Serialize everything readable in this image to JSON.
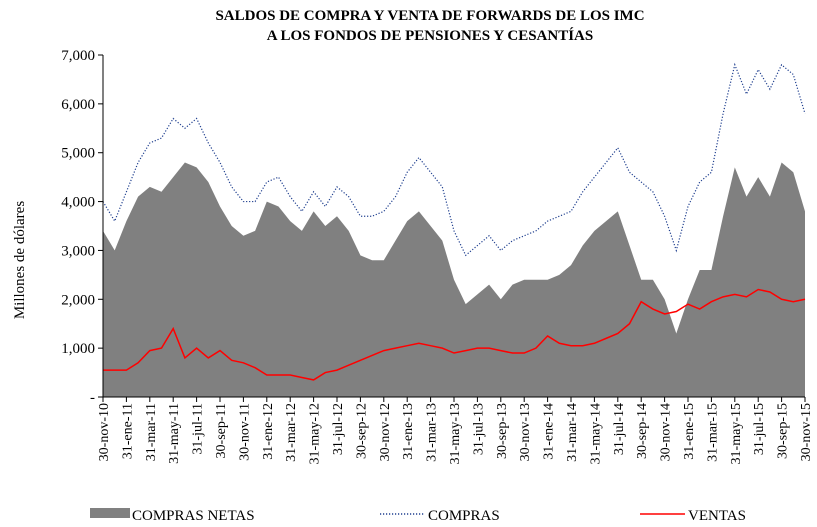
{
  "chart_data": {
    "type": "area-line",
    "title": [
      "SALDOS DE COMPRA Y VENTA DE FORWARDS DE LOS IMC",
      "A LOS FONDOS DE PENSIONES Y CESANTÍAS"
    ],
    "y_label": "Millones de dólares",
    "categories": [
      "30-nov-10",
      null,
      "31-ene-11",
      null,
      "31-mar-11",
      null,
      "31-may-11",
      null,
      "31-jul-11",
      null,
      "30-sep-11",
      null,
      "30-nov-11",
      null,
      "31-ene-12",
      null,
      "31-mar-12",
      null,
      "31-may-12",
      null,
      "31-jul-12",
      null,
      "30-sep-12",
      null,
      "30-nov-12",
      null,
      "31-ene-13",
      null,
      "31-mar-13",
      null,
      "31-may-13",
      null,
      "31-jul-13",
      null,
      "30-sep-13",
      null,
      "30-nov-13",
      null,
      "31-ene-14",
      null,
      "31-mar-14",
      null,
      "31-may-14",
      null,
      "31-jul-14",
      null,
      "30-sep-14",
      null,
      "30-nov-14",
      null,
      "31-ene-15",
      null,
      "31-mar-15",
      null,
      "31-may-15",
      null,
      "31-jul-15",
      null,
      "30-sep-15",
      null,
      "30-nov-15"
    ],
    "series": [
      {
        "name": "COMPRAS NETAS",
        "color": "#808080",
        "style": "area",
        "values": [
          3400,
          3000,
          3600,
          4100,
          4300,
          4200,
          4500,
          4800,
          4700,
          4400,
          3900,
          3500,
          3300,
          3400,
          4000,
          3900,
          3600,
          3400,
          3800,
          3500,
          3700,
          3400,
          2900,
          2800,
          2800,
          3200,
          3600,
          3800,
          3500,
          3200,
          2400,
          1900,
          2100,
          2300,
          2000,
          2300,
          2400,
          2400,
          2400,
          2500,
          2700,
          3100,
          3400,
          3600,
          3800,
          3100,
          2400,
          2400,
          2000,
          1300,
          2000,
          2600,
          2600,
          3700,
          4700,
          4100,
          4500,
          4100,
          4800,
          4600,
          3800
        ]
      },
      {
        "name": "COMPRAS",
        "color": "#1f3f8f",
        "style": "dotted",
        "values": [
          4000,
          3600,
          4200,
          4800,
          5200,
          5300,
          5700,
          5500,
          5700,
          5200,
          4800,
          4300,
          4000,
          4000,
          4400,
          4500,
          4100,
          3800,
          4200,
          3900,
          4300,
          4100,
          3700,
          3700,
          3800,
          4100,
          4600,
          4900,
          4600,
          4300,
          3400,
          2900,
          3100,
          3300,
          3000,
          3200,
          3300,
          3400,
          3600,
          3700,
          3800,
          4200,
          4500,
          4800,
          5100,
          4600,
          4400,
          4200,
          3700,
          3000,
          3900,
          4400,
          4600,
          5800,
          6800,
          6200,
          6700,
          6300,
          6800,
          6600,
          5800
        ]
      },
      {
        "name": "VENTAS",
        "color": "#ff0000",
        "style": "solid",
        "values": [
          550,
          550,
          550,
          700,
          950,
          1000,
          1400,
          800,
          1000,
          800,
          950,
          750,
          700,
          600,
          450,
          450,
          450,
          400,
          350,
          500,
          550,
          650,
          750,
          850,
          950,
          1000,
          1050,
          1100,
          1050,
          1000,
          900,
          950,
          1000,
          1000,
          950,
          900,
          900,
          1000,
          1250,
          1100,
          1050,
          1050,
          1100,
          1200,
          1300,
          1500,
          1950,
          1800,
          1700,
          1750,
          1900,
          1800,
          1950,
          2050,
          2100,
          2050,
          2200,
          2150,
          2000,
          1950,
          2000
        ]
      }
    ],
    "ylim": [
      0,
      7000
    ],
    "yticks": [
      {
        "value": 0,
        "label": "-"
      },
      {
        "value": 1000,
        "label": "1,000"
      },
      {
        "value": 2000,
        "label": "2,000"
      },
      {
        "value": 3000,
        "label": "3,000"
      },
      {
        "value": 4000,
        "label": "4,000"
      },
      {
        "value": 5000,
        "label": "5,000"
      },
      {
        "value": 6000,
        "label": "6,000"
      },
      {
        "value": 7000,
        "label": "7,000"
      }
    ],
    "legend": "bottom"
  }
}
